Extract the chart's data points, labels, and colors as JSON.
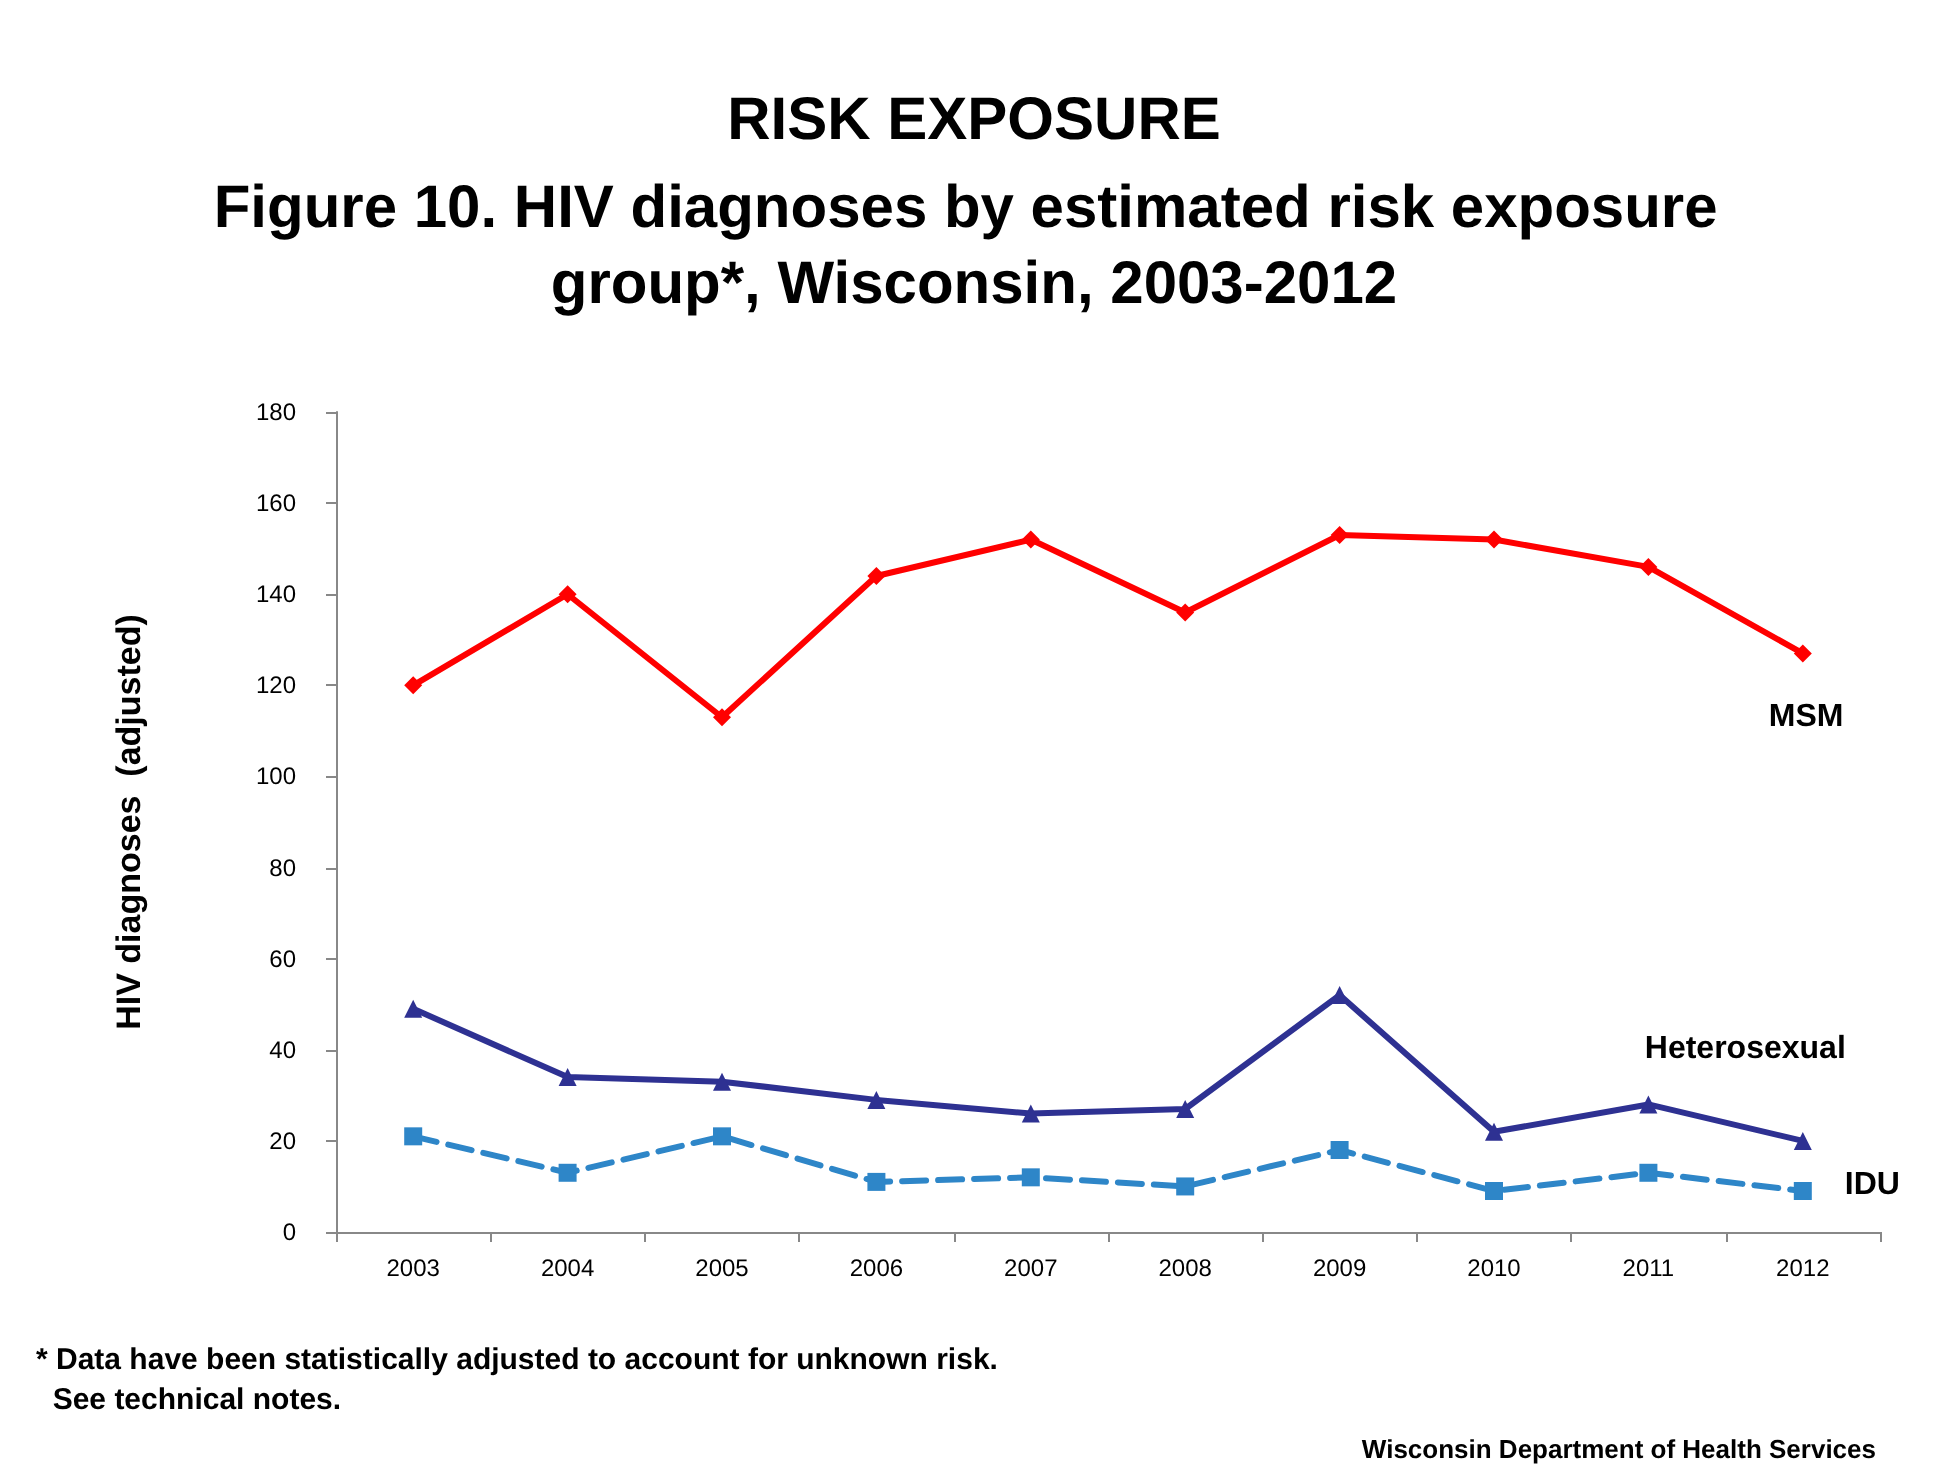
{
  "chart_data": {
    "type": "line",
    "title": "RISK EXPOSURE",
    "subtitle": "Figure 10. HIV diagnoses by estimated risk exposure group*, Wisconsin, 2003-2012",
    "ylabel": "HIV diagnoses  (adjusted)",
    "categories": [
      "2003",
      "2004",
      "2005",
      "2006",
      "2007",
      "2008",
      "2009",
      "2010",
      "2011",
      "2012"
    ],
    "series": [
      {
        "name": "MSM",
        "color": "#ff0000",
        "marker": "diamond",
        "line_style": "solid",
        "values": [
          120,
          140,
          113,
          144,
          152,
          136,
          153,
          152,
          146,
          127
        ]
      },
      {
        "name": "Heterosexual",
        "color": "#2e3192",
        "marker": "triangle",
        "line_style": "solid",
        "values": [
          49,
          34,
          33,
          29,
          26,
          27,
          52,
          22,
          28,
          20
        ]
      },
      {
        "name": "IDU",
        "color": "#2e86c8",
        "marker": "square",
        "line_style": "dashed",
        "values": [
          21,
          13,
          21,
          11,
          12,
          10,
          18,
          9,
          13,
          9
        ]
      }
    ],
    "ylim": [
      0,
      180
    ],
    "yticks": [
      0,
      20,
      40,
      60,
      80,
      100,
      120,
      140,
      160,
      180
    ],
    "grid": false,
    "legend": false,
    "annotations": [
      "* Data have been statistically adjusted to account for unknown risk.\n  See technical notes.",
      "Wisconsin Department of Health Services"
    ]
  }
}
